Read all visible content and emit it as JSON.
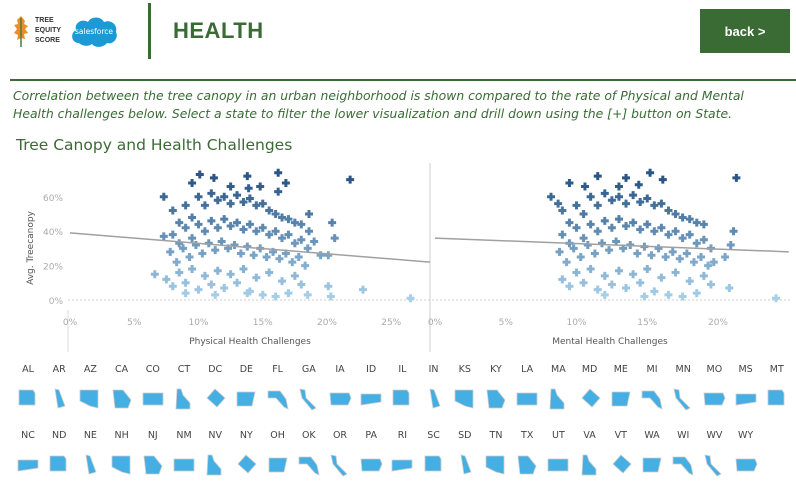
{
  "header": {
    "logo_text": [
      "TREE",
      "EQUITY",
      "SCORE"
    ],
    "partner_logo": "salesforce",
    "title": "HEALTH",
    "back_label": "back >"
  },
  "description": "Correlation between the tree canopy in an urban neighborhood is shown compared to the rate of Physical and Mental Health challenges below. Select a state to filter the lower visualization and drill down using the [+] button on State.",
  "section_title": "Tree Canopy and Health Challenges",
  "colors": {
    "brand": "#3a6b35",
    "point_low": "#a9d2ec",
    "point_high": "#2a5687",
    "state": "#45aee3",
    "trend": "#a0a0a0"
  },
  "chart_data": [
    {
      "type": "scatter",
      "title": "",
      "ylabel": "Avg. Treecanopy",
      "xlabel": "Physical Health Challenges",
      "xlim": [
        0,
        28.2
      ],
      "ylim": [
        0,
        75
      ],
      "xticks": [
        "0%",
        "5%",
        "10%",
        "15%",
        "20%",
        "25%"
      ],
      "xtick_values": [
        0,
        5,
        10,
        15,
        20,
        25
      ],
      "yticks": [
        "0%",
        "20%",
        "40%",
        "60%"
      ],
      "ytick_values": [
        0,
        20,
        40,
        60
      ],
      "trend": [
        [
          0,
          39
        ],
        [
          28.2,
          22
        ]
      ],
      "points": [
        [
          21.8,
          70
        ],
        [
          26.5,
          1
        ],
        [
          22.8,
          6
        ],
        [
          20.3,
          2
        ],
        [
          20.1,
          8
        ],
        [
          20.6,
          36
        ],
        [
          20.4,
          45
        ],
        [
          19.5,
          26
        ],
        [
          20.1,
          26
        ],
        [
          6.6,
          15
        ],
        [
          7.3,
          60
        ],
        [
          7.3,
          37
        ],
        [
          10.1,
          73
        ],
        [
          16.2,
          74
        ],
        [
          13.8,
          72
        ],
        [
          11.2,
          71
        ],
        [
          9.5,
          68
        ],
        [
          12.5,
          66
        ],
        [
          14.8,
          66
        ],
        [
          16.8,
          68
        ],
        [
          16.2,
          63
        ],
        [
          13.9,
          65
        ],
        [
          8,
          52
        ],
        [
          8.5,
          45
        ],
        [
          9,
          55
        ],
        [
          9.5,
          48
        ],
        [
          10,
          60
        ],
        [
          10.5,
          55
        ],
        [
          11,
          62
        ],
        [
          11.5,
          58
        ],
        [
          12,
          60
        ],
        [
          12.5,
          56
        ],
        [
          13,
          61
        ],
        [
          13.5,
          57
        ],
        [
          14,
          59
        ],
        [
          14.5,
          55
        ],
        [
          15,
          56
        ],
        [
          15.5,
          52
        ],
        [
          16,
          50
        ],
        [
          16.5,
          48
        ],
        [
          17,
          47
        ],
        [
          17.5,
          45
        ],
        [
          18,
          44
        ],
        [
          18.6,
          50
        ],
        [
          18.6,
          40
        ],
        [
          8,
          38
        ],
        [
          8.5,
          33
        ],
        [
          9,
          42
        ],
        [
          9.5,
          36
        ],
        [
          10,
          44
        ],
        [
          10.5,
          40
        ],
        [
          11,
          46
        ],
        [
          11.5,
          42
        ],
        [
          12,
          47
        ],
        [
          12.5,
          43
        ],
        [
          13,
          45
        ],
        [
          13.5,
          41
        ],
        [
          14,
          44
        ],
        [
          14.5,
          40
        ],
        [
          15,
          42
        ],
        [
          15.5,
          38
        ],
        [
          16,
          40
        ],
        [
          16.5,
          36
        ],
        [
          17,
          38
        ],
        [
          17.5,
          33
        ],
        [
          18,
          35
        ],
        [
          18.5,
          30
        ],
        [
          19,
          34
        ],
        [
          7.8,
          28
        ],
        [
          8.3,
          22
        ],
        [
          8.8,
          30
        ],
        [
          9.3,
          25
        ],
        [
          9.8,
          32
        ],
        [
          10.3,
          27
        ],
        [
          10.8,
          33
        ],
        [
          11.3,
          29
        ],
        [
          11.8,
          34
        ],
        [
          12.3,
          30
        ],
        [
          12.8,
          32
        ],
        [
          13.3,
          27
        ],
        [
          13.8,
          31
        ],
        [
          14.3,
          26
        ],
        [
          14.8,
          30
        ],
        [
          15.3,
          25
        ],
        [
          15.8,
          28
        ],
        [
          16.3,
          24
        ],
        [
          16.8,
          27
        ],
        [
          17.3,
          22
        ],
        [
          17.8,
          25
        ],
        [
          18.3,
          20
        ],
        [
          7.5,
          12
        ],
        [
          8,
          8
        ],
        [
          8.5,
          16
        ],
        [
          9,
          10
        ],
        [
          9.5,
          18
        ],
        [
          10,
          6
        ],
        [
          10.5,
          14
        ],
        [
          11,
          9
        ],
        [
          11.5,
          17
        ],
        [
          12,
          7
        ],
        [
          12.5,
          15
        ],
        [
          13,
          10
        ],
        [
          13.5,
          18
        ],
        [
          14,
          5
        ],
        [
          14.5,
          13
        ],
        [
          15,
          3
        ],
        [
          15.5,
          16
        ],
        [
          16,
          2
        ],
        [
          16.5,
          11
        ],
        [
          17,
          4
        ],
        [
          17.5,
          14
        ],
        [
          18,
          9
        ],
        [
          18.5,
          3
        ],
        [
          9,
          4
        ],
        [
          11.3,
          3
        ],
        [
          13.8,
          4
        ]
      ]
    },
    {
      "type": "scatter",
      "title": "",
      "ylabel": "",
      "xlabel": "Mental Health Challenges",
      "xlim": [
        0,
        25
      ],
      "ylim": [
        0,
        75
      ],
      "xticks": [
        "0%",
        "5%",
        "10%",
        "15%",
        "20%"
      ],
      "xtick_values": [
        0,
        5,
        10,
        15,
        20
      ],
      "trend": [
        [
          0,
          36
        ],
        [
          25,
          28
        ]
      ],
      "points": [
        [
          21.3,
          71
        ],
        [
          24.1,
          1
        ],
        [
          15.2,
          74
        ],
        [
          13.5,
          71
        ],
        [
          11.5,
          72
        ],
        [
          16.1,
          70
        ],
        [
          14.4,
          67
        ],
        [
          10.6,
          66
        ],
        [
          9.5,
          68
        ],
        [
          13,
          66
        ],
        [
          8.7,
          56
        ],
        [
          8.2,
          60
        ],
        [
          21.1,
          40
        ],
        [
          20.9,
          32
        ],
        [
          20.5,
          25
        ],
        [
          20.8,
          7
        ],
        [
          19.7,
          22
        ],
        [
          9,
          52
        ],
        [
          9.5,
          45
        ],
        [
          10,
          55
        ],
        [
          10.5,
          50
        ],
        [
          11,
          60
        ],
        [
          11.5,
          55
        ],
        [
          12,
          62
        ],
        [
          12.5,
          58
        ],
        [
          13,
          60
        ],
        [
          13.5,
          56
        ],
        [
          14,
          61
        ],
        [
          14.5,
          57
        ],
        [
          15,
          59
        ],
        [
          15.5,
          55
        ],
        [
          16,
          56
        ],
        [
          16.5,
          52
        ],
        [
          17,
          50
        ],
        [
          17.5,
          48
        ],
        [
          18,
          47
        ],
        [
          18.5,
          45
        ],
        [
          19,
          44
        ],
        [
          9,
          38
        ],
        [
          9.5,
          33
        ],
        [
          10,
          42
        ],
        [
          10.5,
          36
        ],
        [
          11,
          44
        ],
        [
          11.5,
          40
        ],
        [
          12,
          46
        ],
        [
          12.5,
          42
        ],
        [
          13,
          47
        ],
        [
          13.5,
          43
        ],
        [
          14,
          45
        ],
        [
          14.5,
          41
        ],
        [
          15,
          44
        ],
        [
          15.5,
          40
        ],
        [
          16,
          42
        ],
        [
          16.5,
          38
        ],
        [
          17,
          40
        ],
        [
          17.5,
          36
        ],
        [
          18,
          38
        ],
        [
          18.5,
          33
        ],
        [
          19,
          35
        ],
        [
          19.5,
          30
        ],
        [
          8.8,
          28
        ],
        [
          9.3,
          22
        ],
        [
          9.8,
          30
        ],
        [
          10.3,
          25
        ],
        [
          10.8,
          32
        ],
        [
          11.3,
          27
        ],
        [
          11.8,
          33
        ],
        [
          12.3,
          29
        ],
        [
          12.8,
          34
        ],
        [
          13.3,
          30
        ],
        [
          13.8,
          32
        ],
        [
          14.3,
          27
        ],
        [
          14.8,
          31
        ],
        [
          15.3,
          26
        ],
        [
          15.8,
          30
        ],
        [
          16.3,
          25
        ],
        [
          16.8,
          28
        ],
        [
          17.3,
          24
        ],
        [
          17.8,
          27
        ],
        [
          18.3,
          22
        ],
        [
          18.8,
          25
        ],
        [
          19.3,
          20
        ],
        [
          9,
          12
        ],
        [
          9.5,
          8
        ],
        [
          10,
          16
        ],
        [
          10.5,
          10
        ],
        [
          11,
          18
        ],
        [
          11.5,
          6
        ],
        [
          12,
          14
        ],
        [
          12.5,
          9
        ],
        [
          13,
          17
        ],
        [
          13.5,
          7
        ],
        [
          14,
          15
        ],
        [
          14.5,
          10
        ],
        [
          15,
          18
        ],
        [
          15.5,
          5
        ],
        [
          16,
          13
        ],
        [
          16.5,
          3
        ],
        [
          17,
          16
        ],
        [
          17.5,
          2
        ],
        [
          18,
          11
        ],
        [
          18.5,
          4
        ],
        [
          19,
          14
        ],
        [
          19.5,
          9
        ],
        [
          12,
          3
        ],
        [
          14.8,
          2
        ]
      ]
    }
  ],
  "states_row1": [
    "AL",
    "AR",
    "AZ",
    "CA",
    "CO",
    "CT",
    "DC",
    "DE",
    "FL",
    "GA",
    "IA",
    "ID",
    "IL",
    "IN",
    "KS",
    "KY",
    "LA",
    "MA",
    "MD",
    "ME",
    "MI",
    "MN",
    "MO",
    "MS",
    "MT"
  ],
  "states_row2": [
    "NC",
    "ND",
    "NE",
    "NH",
    "NJ",
    "NM",
    "NV",
    "NY",
    "OH",
    "OK",
    "OR",
    "PA",
    "RI",
    "SC",
    "SD",
    "TN",
    "TX",
    "UT",
    "VA",
    "VT",
    "WA",
    "WI",
    "WV",
    "WY"
  ]
}
